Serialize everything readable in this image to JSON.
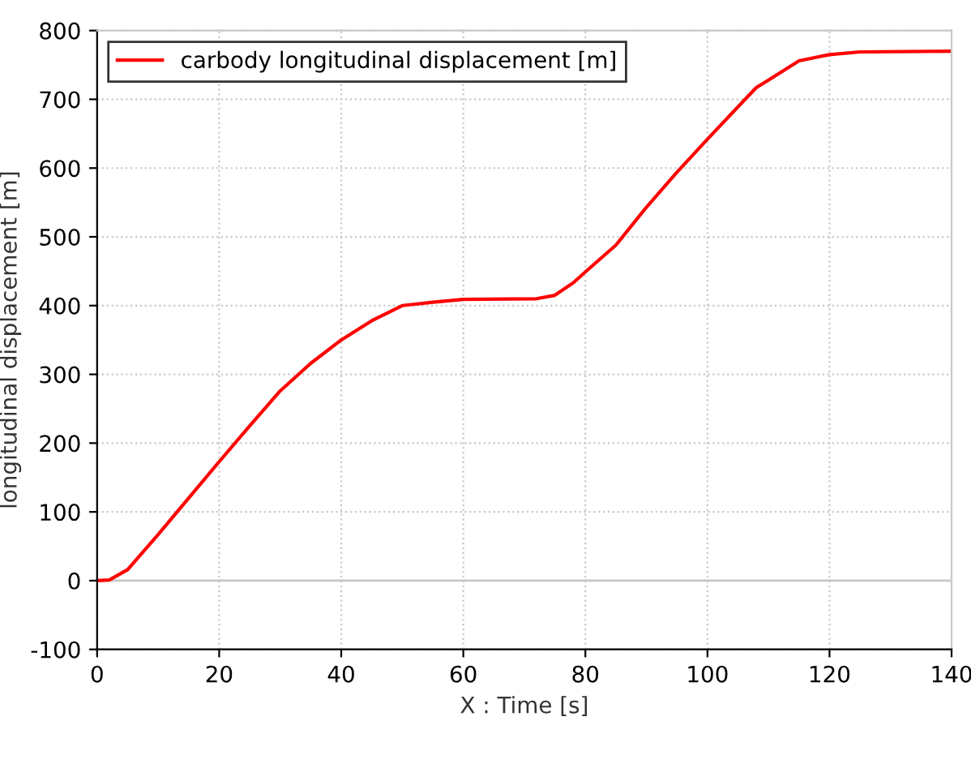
{
  "chart_data": {
    "type": "line",
    "xlabel": "X : Time [s]",
    "ylabel": "longitudinal displacement [m]",
    "x": [
      0,
      2,
      5,
      10,
      15,
      20,
      25,
      30,
      35,
      40,
      45,
      50,
      55,
      60,
      72,
      75,
      78,
      80,
      85,
      90,
      95,
      100,
      105,
      108,
      110,
      115,
      120,
      125,
      140
    ],
    "series": [
      {
        "name": "carbody longitudinal displacement [m]",
        "color": "#ff0000",
        "values": [
          0,
          1,
          16,
          67,
          120,
          173,
          225,
          276,
          316,
          350,
          378,
          400,
          405,
          409,
          410,
          415,
          433,
          449,
          488,
          543,
          594,
          642,
          689,
          717,
          728,
          756,
          765,
          769,
          770
        ]
      }
    ],
    "xlim": [
      0,
      140
    ],
    "ylim": [
      -100,
      800
    ],
    "xticks": [
      0,
      20,
      40,
      60,
      80,
      100,
      120,
      140
    ],
    "yticks": [
      -100,
      0,
      100,
      200,
      300,
      400,
      500,
      600,
      700,
      800
    ],
    "grid": true,
    "legend": "top left",
    "marker": "none",
    "line_style": "solid"
  }
}
